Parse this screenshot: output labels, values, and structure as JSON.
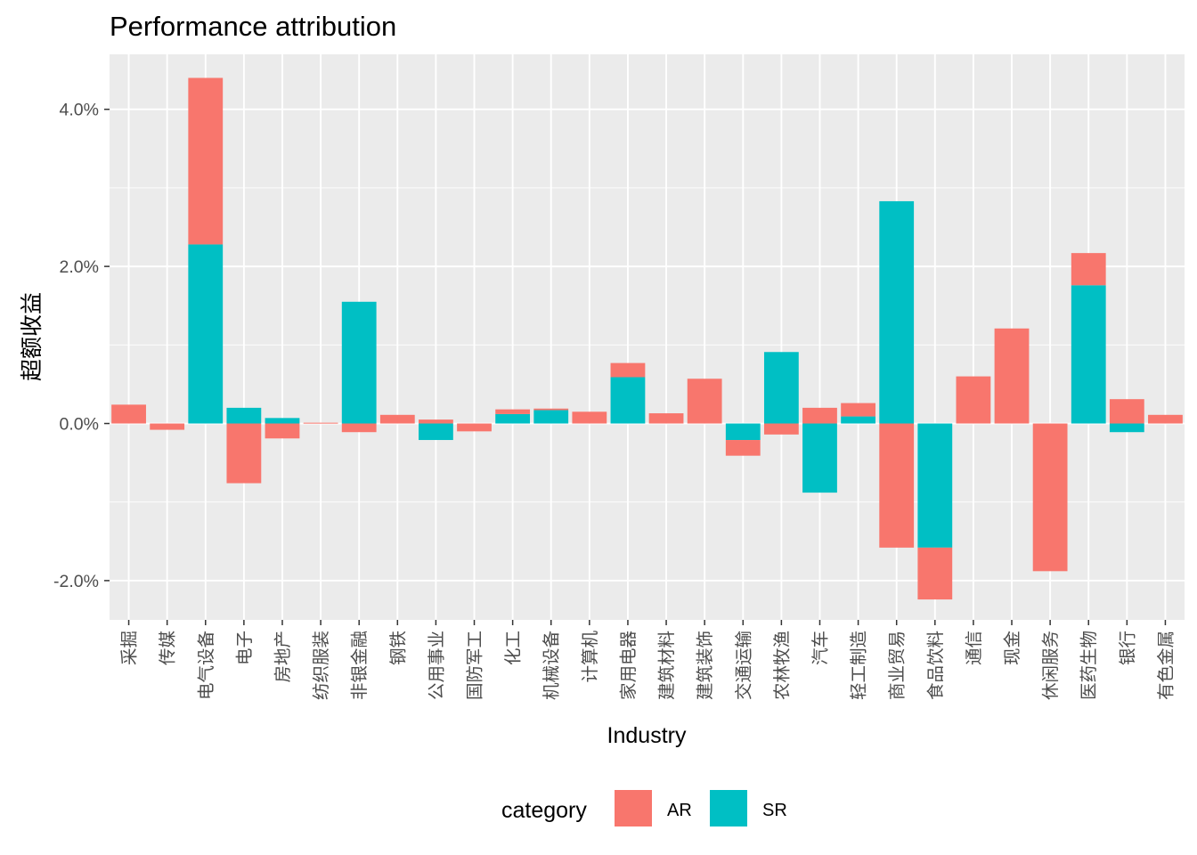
{
  "chart_data": {
    "type": "bar",
    "stacked": true,
    "title": "Performance attribution",
    "xlabel": "Industry",
    "ylabel": "超额收益",
    "ylim": [
      -0.025,
      0.047
    ],
    "y_ticks": [
      -0.02,
      0.0,
      0.02,
      0.04
    ],
    "y_tick_labels": [
      "-2.0%",
      "0.0%",
      "2.0%",
      "4.0%"
    ],
    "grid": true,
    "legend_position": "bottom",
    "legend_title": "category",
    "categories": [
      "采掘",
      "传媒",
      "电气设备",
      "电子",
      "房地产",
      "纺织服装",
      "非银金融",
      "钢铁",
      "公用事业",
      "国防军工",
      "化工",
      "机械设备",
      "计算机",
      "家用电器",
      "建筑材料",
      "建筑装饰",
      "交通运输",
      "农林牧渔",
      "汽车",
      "轻工制造",
      "商业贸易",
      "食品饮料",
      "通信",
      "现金",
      "休闲服务",
      "医药生物",
      "银行",
      "有色金属"
    ],
    "series": [
      {
        "name": "AR",
        "color": "#F8766D",
        "values": [
          0.0024,
          -0.0008,
          0.0212,
          -0.0076,
          -0.0019,
          0.0001,
          -0.0011,
          0.0011,
          0.0005,
          -0.001,
          0.0006,
          0.0002,
          0.0015,
          0.0018,
          0.0013,
          0.0057,
          -0.002,
          -0.0014,
          0.002,
          0.0017,
          -0.0158,
          -0.0066,
          0.006,
          0.0121,
          -0.0188,
          0.0041,
          0.0031,
          0.0011
        ]
      },
      {
        "name": "SR",
        "color": "#00BFC4",
        "values": [
          0.0,
          0.0,
          0.0228,
          0.002,
          0.0007,
          0.0,
          0.0155,
          0.0,
          -0.0021,
          0.0,
          0.0012,
          0.0017,
          0.0,
          0.0059,
          0.0,
          0.0,
          -0.0021,
          0.0091,
          -0.0088,
          0.0009,
          0.0283,
          -0.0158,
          0.0,
          0.0,
          0.0,
          0.0176,
          -0.0011,
          0.0
        ]
      }
    ]
  }
}
